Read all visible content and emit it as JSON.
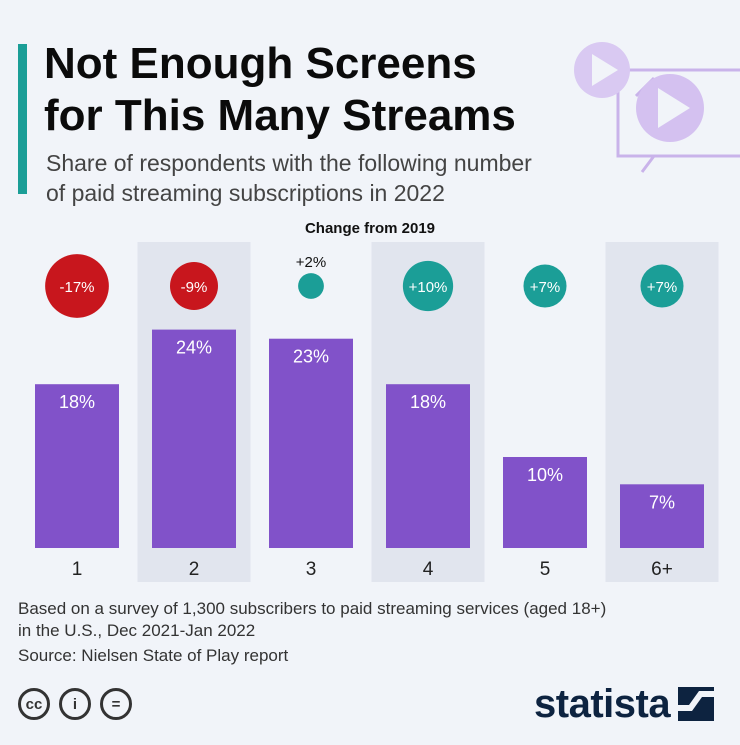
{
  "header": {
    "title_lines": [
      "Not Enough Screens",
      "for This Many Streams"
    ],
    "subtitle_lines": [
      "Share of respondents with the following number",
      "of paid streaming subscriptions in 2022"
    ]
  },
  "colors": {
    "accent": "#1b9e97",
    "bar": "#8152c9",
    "negative": "#c8161d",
    "positive": "#1b9e97",
    "highlight_band": "#e1e5ee",
    "deco": "#c9b3ea"
  },
  "chart_data": {
    "type": "bar",
    "categories": [
      "1",
      "2",
      "3",
      "4",
      "5",
      "6+"
    ],
    "values": [
      18,
      24,
      23,
      18,
      10,
      7
    ],
    "value_labels": [
      "18%",
      "24%",
      "23%",
      "18%",
      "10%",
      "7%"
    ],
    "unit": "%",
    "ylim": [
      0,
      24
    ],
    "change_header": "Change from 2019",
    "changes": [
      -17,
      -9,
      2,
      10,
      7,
      7
    ],
    "change_labels": [
      "-17%",
      "-9%",
      "+2%",
      "+10%",
      "+7%",
      "+7%"
    ],
    "shaded_categories": [
      "2",
      "4",
      "6+"
    ],
    "grid": false,
    "legend": "none"
  },
  "footer": {
    "note_lines": [
      "Based on a survey of 1,300 subscribers to paid streaming services (aged 18+)",
      "in the U.S., Dec 2021-Jan 2022"
    ],
    "source": "Source: Nielsen State of Play report",
    "license_icons": [
      "cc-icon",
      "attribution-icon",
      "no-derivatives-icon"
    ],
    "license_glyphs": [
      "cc",
      "i",
      "="
    ],
    "brand": "statista"
  }
}
